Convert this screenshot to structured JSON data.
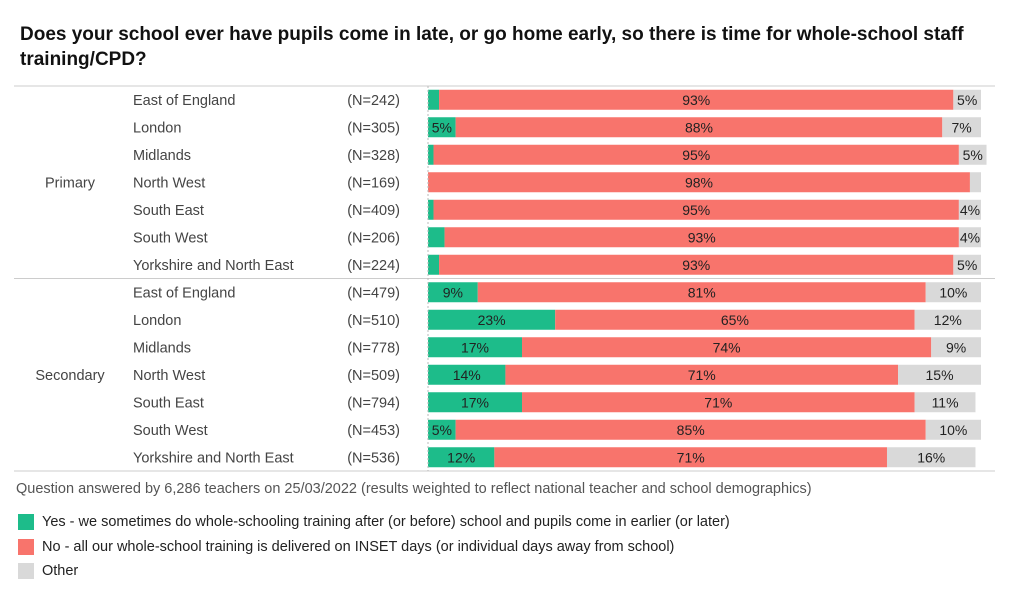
{
  "chart_data": {
    "type": "bar",
    "orientation": "horizontal",
    "stacked": true,
    "title": "Does your school ever have pupils come in late, or go home early, so there is time for whole-school staff training/CPD?",
    "xlim": [
      0,
      100
    ],
    "groups": [
      {
        "name": "Primary",
        "categories": [
          "East of England",
          "London",
          "Midlands",
          "North West",
          "South East",
          "South West",
          "Yorkshire and North East"
        ],
        "n": [
          "(N=242)",
          "(N=305)",
          "(N=328)",
          "(N=169)",
          "(N=409)",
          "(N=206)",
          "(N=224)"
        ],
        "yes": [
          2,
          5,
          1,
          0,
          1,
          3,
          2
        ],
        "no": [
          93,
          88,
          95,
          98,
          95,
          93,
          93
        ],
        "other": [
          5,
          7,
          5,
          2,
          4,
          4,
          5
        ],
        "yes_labels": [
          "",
          "5%",
          "",
          "",
          "",
          "",
          ""
        ],
        "no_labels": [
          "93%",
          "88%",
          "95%",
          "98%",
          "95%",
          "93%",
          "93%"
        ],
        "other_labels": [
          "5%",
          "7%",
          "5%",
          "",
          "4%",
          "4%",
          "5%"
        ]
      },
      {
        "name": "Secondary",
        "categories": [
          "East of England",
          "London",
          "Midlands",
          "North West",
          "South East",
          "South West",
          "Yorkshire and North East"
        ],
        "n": [
          "(N=479)",
          "(N=510)",
          "(N=778)",
          "(N=509)",
          "(N=794)",
          "(N=453)",
          "(N=536)"
        ],
        "yes": [
          9,
          23,
          17,
          14,
          17,
          5,
          12
        ],
        "no": [
          81,
          65,
          74,
          71,
          71,
          85,
          71
        ],
        "other": [
          10,
          12,
          9,
          15,
          11,
          10,
          16
        ],
        "yes_labels": [
          "9%",
          "23%",
          "17%",
          "14%",
          "17%",
          "5%",
          "12%"
        ],
        "no_labels": [
          "81%",
          "65%",
          "74%",
          "71%",
          "71%",
          "85%",
          "71%"
        ],
        "other_labels": [
          "10%",
          "12%",
          "9%",
          "15%",
          "11%",
          "10%",
          "16%"
        ]
      }
    ],
    "legend": [
      {
        "name": "Yes - we sometimes do whole-schooling training after (or before) school and pupils come in earlier (or later)",
        "color": "#1dbc8a"
      },
      {
        "name": "No - all our whole-school training is delivered on INSET days (or individual days away from school)",
        "color": "#f8746c"
      },
      {
        "name": "Other",
        "color": "#d9d9d9"
      }
    ],
    "legend_placement": "bottom-left",
    "footnote": "Question answered by 6,286 teachers on 25/03/2022 (results weighted to reflect national teacher and school demographics)"
  }
}
